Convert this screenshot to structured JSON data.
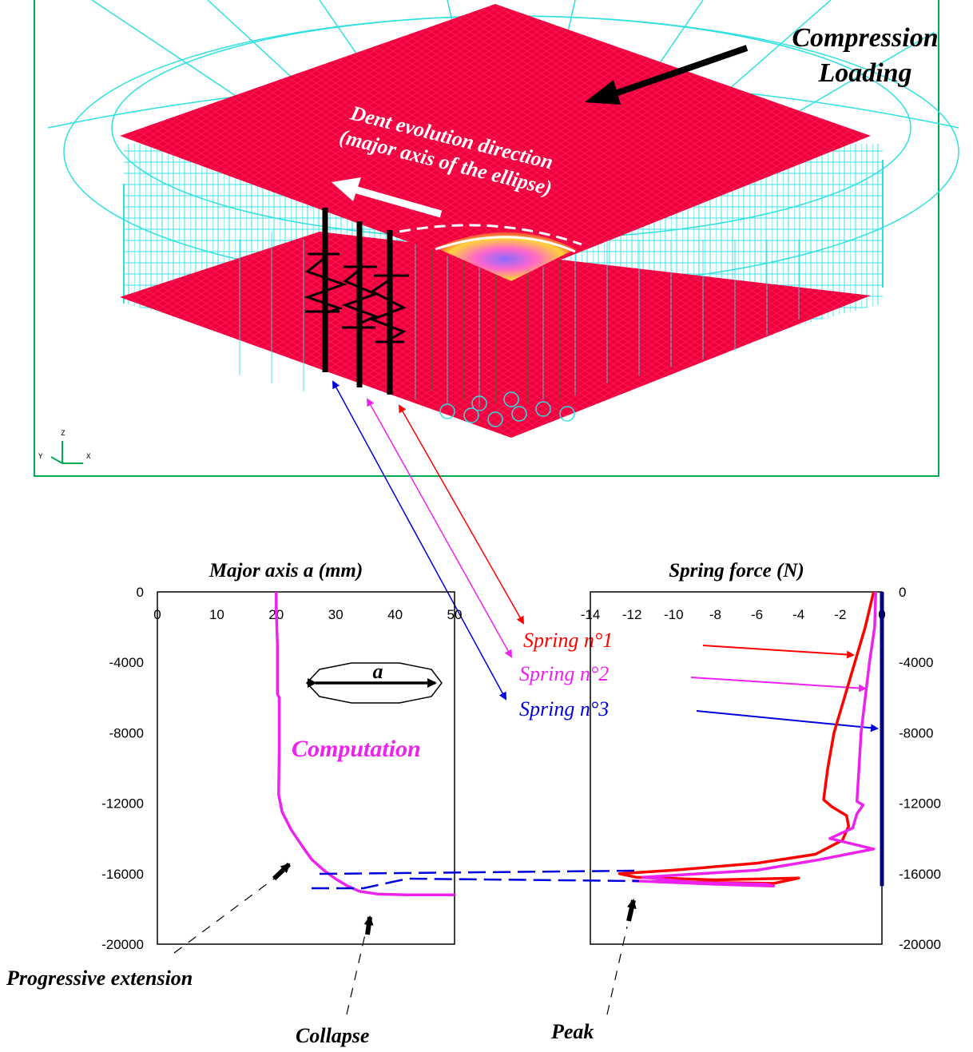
{
  "fe_view": {
    "axis_triad": {
      "z": "Z",
      "y": "Y",
      "x": "X"
    },
    "labels": {
      "compression_line1": "Compression",
      "compression_line2": "Loading",
      "dent_line1": "Dent evolution direction",
      "dent_line2": "(major axis of the ellipse)"
    },
    "colors": {
      "plate": "#f2003c",
      "mesh": "#30e0e0",
      "frame": "#00aa55"
    }
  },
  "springs": [
    {
      "label": "Spring n°1",
      "color": "#ff0000"
    },
    {
      "label": "Spring n°2",
      "color": "#ee22ee"
    },
    {
      "label": "Spring n°3",
      "color": "#0000dd"
    }
  ],
  "annotations": {
    "computation": "Computation",
    "ellipse_axis": "a",
    "progressive_extension": "Progressive extension",
    "collapse": "Collapse",
    "peak": "Peak"
  },
  "chart_data": [
    {
      "type": "line",
      "title": "Major axis a (mm)",
      "x_ticks": [
        0,
        10,
        20,
        30,
        40,
        50
      ],
      "y_ticks": [
        0,
        -4000,
        -8000,
        -12000,
        -16000,
        -20000
      ],
      "xlim": [
        0,
        50
      ],
      "ylim": [
        -20000,
        0
      ],
      "series": [
        {
          "color": "#ee22ee",
          "points": [
            [
              20,
              0
            ],
            [
              20,
              -1000
            ],
            [
              20.2,
              -3000
            ],
            [
              20.2,
              -5800
            ],
            [
              20.5,
              -6000
            ],
            [
              20.5,
              -9000
            ],
            [
              20.4,
              -11500
            ],
            [
              21,
              -12500
            ],
            [
              22.5,
              -13500
            ],
            [
              24.5,
              -14500
            ],
            [
              26,
              -15200
            ],
            [
              28,
              -15800
            ],
            [
              30,
              -16300
            ],
            [
              32,
              -16700
            ],
            [
              34,
              -17000
            ],
            [
              37,
              -17150
            ],
            [
              42,
              -17200
            ],
            [
              50,
              -17200
            ]
          ]
        }
      ]
    },
    {
      "type": "line",
      "title": "Spring force (N)",
      "x_ticks": [
        -14,
        -12,
        -10,
        -8,
        -6,
        -4,
        -2,
        0
      ],
      "y_ticks": [
        0,
        -4000,
        -8000,
        -12000,
        -16000,
        -20000
      ],
      "xlim": [
        -14,
        0
      ],
      "ylim": [
        -20000,
        0
      ],
      "series": [
        {
          "name": "Spring n°1",
          "color": "#ff0000",
          "points": [
            [
              -0.4,
              0
            ],
            [
              -0.8,
              -2000
            ],
            [
              -1.3,
              -4000
            ],
            [
              -1.8,
              -6000
            ],
            [
              -2.3,
              -8000
            ],
            [
              -2.6,
              -10000
            ],
            [
              -2.8,
              -11800
            ],
            [
              -2.4,
              -12200
            ],
            [
              -1.7,
              -12700
            ],
            [
              -1.6,
              -13300
            ],
            [
              -1.9,
              -14100
            ],
            [
              -3.2,
              -14900
            ],
            [
              -6,
              -15400
            ],
            [
              -10,
              -15800
            ],
            [
              -12.6,
              -16000
            ],
            [
              -11.8,
              -16200
            ],
            [
              -8,
              -16350
            ],
            [
              -4,
              -16250
            ],
            [
              -5.2,
              -16550
            ],
            [
              -11,
              -16450
            ]
          ]
        },
        {
          "name": "Spring n°2",
          "color": "#ee22ee",
          "points": [
            [
              -0.3,
              0
            ],
            [
              -0.35,
              -2000
            ],
            [
              -0.6,
              -4000
            ],
            [
              -0.8,
              -6000
            ],
            [
              -1,
              -8000
            ],
            [
              -1.1,
              -10000
            ],
            [
              -1.2,
              -11900
            ],
            [
              -0.9,
              -12100
            ],
            [
              -1.2,
              -12600
            ],
            [
              -1.4,
              -13400
            ],
            [
              -2.5,
              -14000
            ],
            [
              -0.4,
              -14600
            ],
            [
              -3,
              -15200
            ],
            [
              -6,
              -15800
            ],
            [
              -11.5,
              -16200
            ],
            [
              -9,
              -16500
            ],
            [
              -5.5,
              -16600
            ],
            [
              -5.2,
              -16700
            ],
            [
              -8,
              -16600
            ],
            [
              -12,
              -16400
            ]
          ]
        },
        {
          "name": "Spring n°3",
          "color": "#000080",
          "points": [
            [
              0,
              0
            ],
            [
              0,
              -4000
            ],
            [
              0,
              -8000
            ],
            [
              0,
              -12000
            ],
            [
              0,
              -16000
            ],
            [
              0,
              -16700
            ]
          ]
        }
      ]
    }
  ]
}
